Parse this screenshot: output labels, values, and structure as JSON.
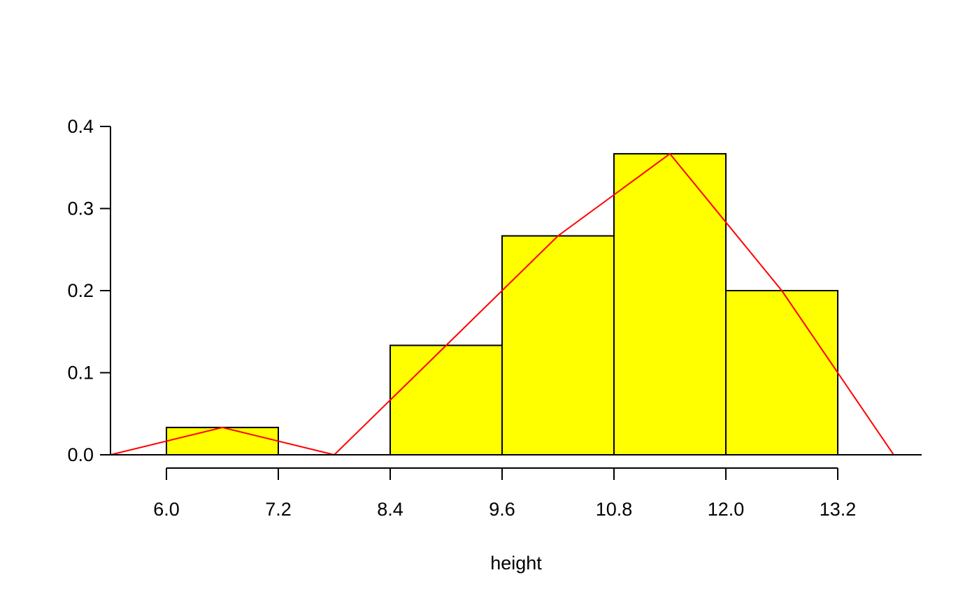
{
  "chart_data": {
    "type": "bar",
    "subtype": "histogram-with-frequency-polygon",
    "title": "",
    "xlabel": "height",
    "ylabel": "",
    "bins": [
      {
        "start": 6.0,
        "end": 7.2,
        "value": 0.0333
      },
      {
        "start": 7.2,
        "end": 8.4,
        "value": 0.0
      },
      {
        "start": 8.4,
        "end": 9.6,
        "value": 0.1333
      },
      {
        "start": 9.6,
        "end": 10.8,
        "value": 0.2667
      },
      {
        "start": 10.8,
        "end": 12.0,
        "value": 0.3667
      },
      {
        "start": 12.0,
        "end": 13.2,
        "value": 0.2
      }
    ],
    "polygon": {
      "x": [
        5.4,
        6.6,
        7.8,
        9.0,
        10.2,
        11.4,
        12.6,
        13.8
      ],
      "y": [
        0.0,
        0.0333,
        0.0,
        0.1333,
        0.2667,
        0.3667,
        0.2,
        0.0
      ]
    },
    "xticks": [
      "6.0",
      "7.2",
      "8.4",
      "9.6",
      "10.8",
      "12.0",
      "13.2"
    ],
    "yticks": [
      "0.0",
      "0.1",
      "0.2",
      "0.3",
      "0.4"
    ],
    "xlim": [
      5.4,
      14.1
    ],
    "ylim": [
      0,
      0.4
    ],
    "colors": {
      "bar_fill": "#ffff00",
      "bar_stroke": "#000000",
      "polygon": "#ff0000",
      "axis": "#000000"
    },
    "grid": false,
    "legend": "none"
  }
}
